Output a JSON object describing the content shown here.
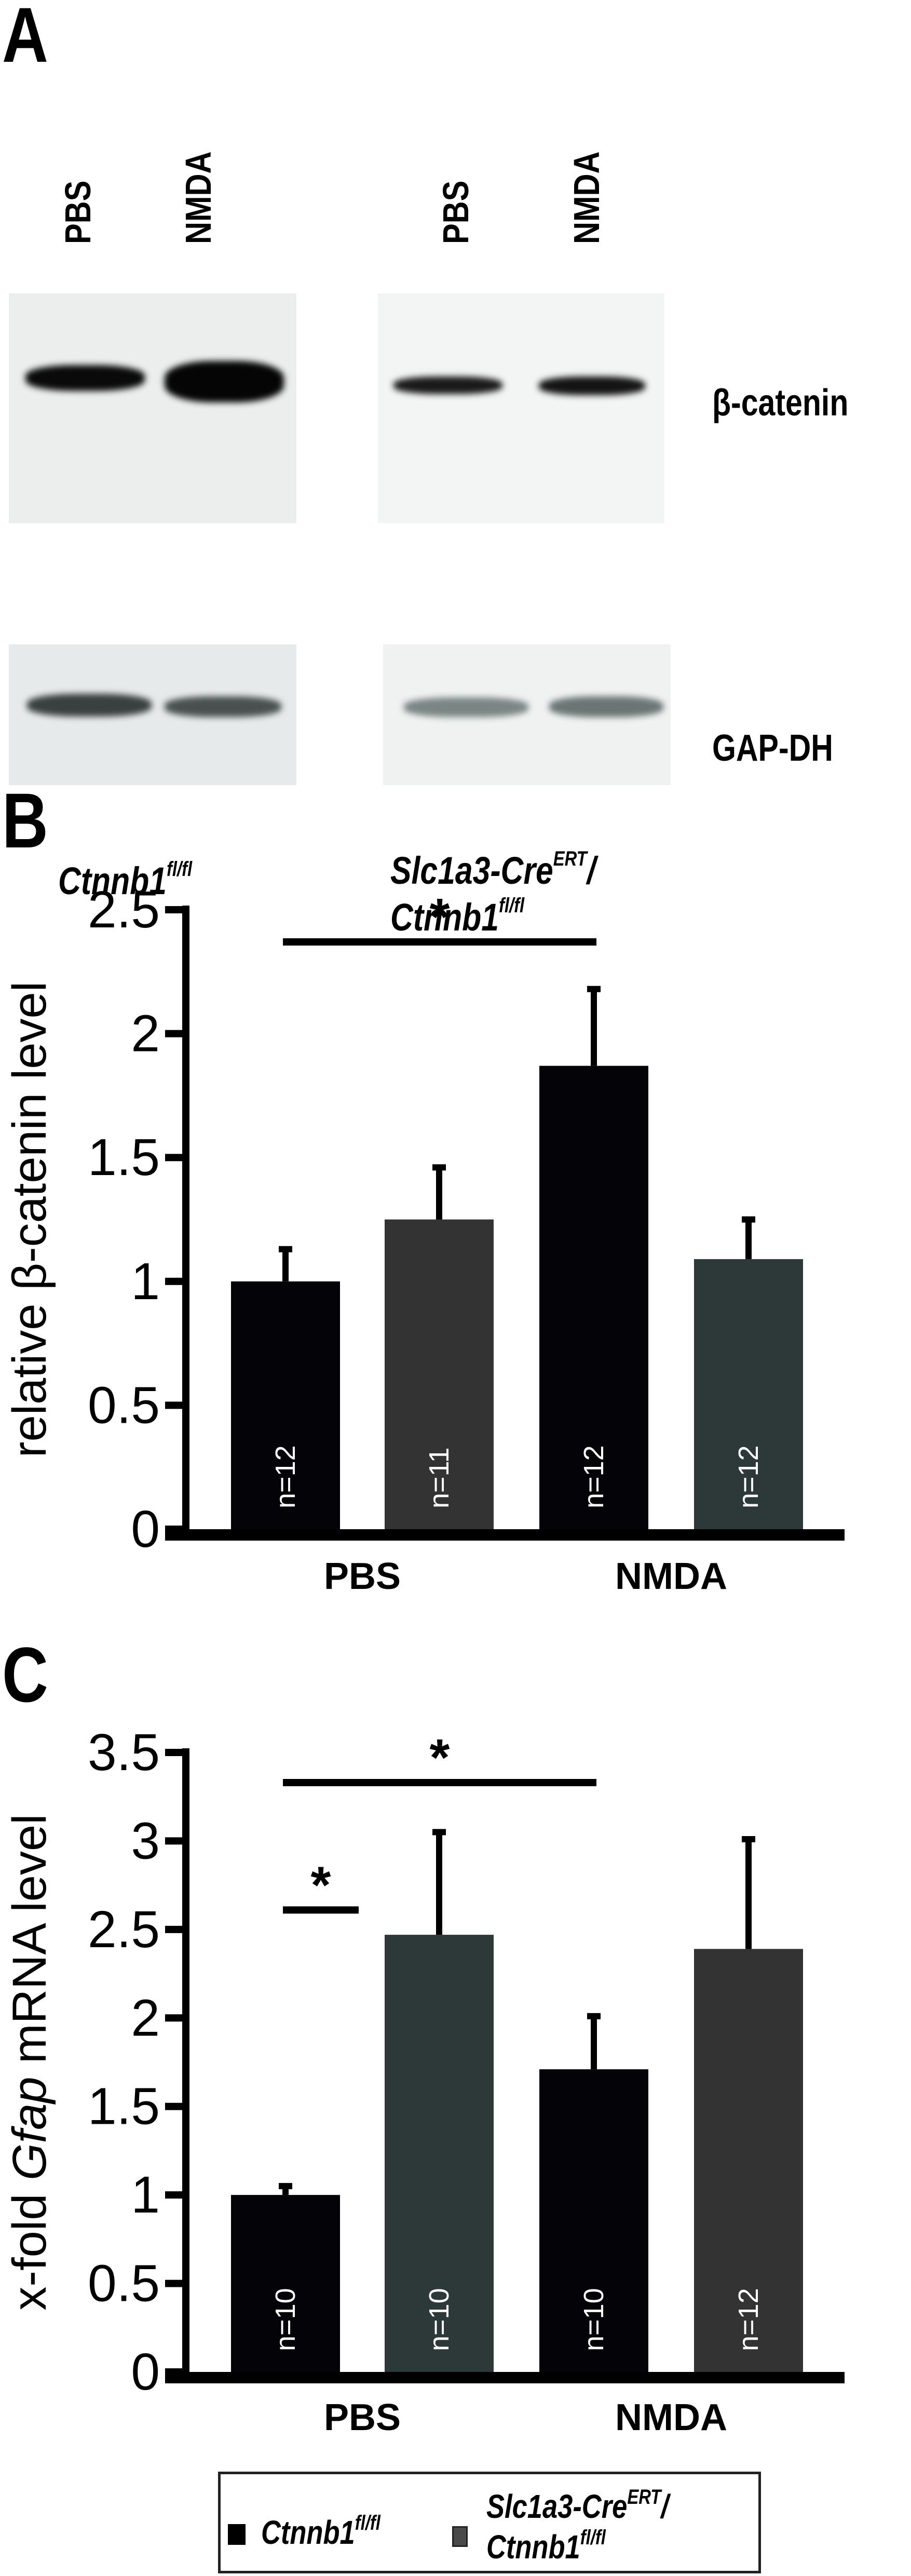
{
  "panel_a": {
    "letter": "A",
    "lane_labels": [
      "PBS",
      "NMDA",
      "PBS",
      "NMDA"
    ],
    "proteins": [
      "β-catenin",
      "GAP-DH"
    ],
    "genotype_left": {
      "main": "Ctnnb1",
      "sup": "fl/fl"
    },
    "genotype_right": {
      "line1_main": "Slc1a3-Cre",
      "line1_sup": "ERT",
      "line1_tail": "/",
      "line2_main": "Ctnnb1",
      "line2_sup": "fl/fl"
    }
  },
  "legend": {
    "items": [
      {
        "label": "Ctnnb1",
        "sup": "fl/fl",
        "color": "#000000"
      },
      {
        "label": "Slc1a3-Cre",
        "sup": "ERT",
        "tail": "/",
        "label2": "Ctnnb1",
        "sup2": "fl/fl",
        "color": "#4a4a4a"
      }
    ]
  },
  "chart_data": [
    {
      "panel": "B",
      "type": "bar",
      "title": "",
      "ylabel": "relative β-catenin level",
      "xlabel": "",
      "categories": [
        "PBS",
        "NMDA"
      ],
      "ylim": [
        0,
        2.5
      ],
      "yticks": [
        "0",
        "0.5",
        "1",
        "1.5",
        "2",
        "2.5"
      ],
      "series": [
        {
          "name": "Ctnnb1 fl/fl",
          "values": [
            1.0,
            1.87
          ],
          "errors": [
            0.13,
            0.31
          ],
          "n": [
            "n=12",
            "n=12"
          ],
          "color": "#030308"
        },
        {
          "name": "Slc1a3-CreERT/Ctnnb1 fl/fl",
          "values": [
            1.25,
            1.09
          ],
          "errors": [
            0.21,
            0.16
          ],
          "n": [
            "n=11",
            "n=12"
          ],
          "colors": [
            "#333333",
            "#2d3838"
          ]
        }
      ],
      "significance": [
        {
          "from": "PBS Ctnnb1 fl/fl",
          "to": "NMDA Ctnnb1 fl/fl",
          "y": 2.37,
          "label": "*"
        }
      ],
      "grid": false
    },
    {
      "panel": "C",
      "type": "bar",
      "title": "",
      "ylabel_parts": [
        "x-fold ",
        "Gfap",
        " mRNA level"
      ],
      "xlabel": "",
      "categories": [
        "PBS",
        "NMDA"
      ],
      "ylim": [
        0,
        3.5
      ],
      "yticks": [
        "0",
        "0.5",
        "1",
        "1.5",
        "2",
        "2.5",
        "3",
        "3.5"
      ],
      "series": [
        {
          "name": "Ctnnb1 fl/fl",
          "values": [
            1.0,
            1.71
          ],
          "errors": [
            0.05,
            0.3
          ],
          "n": [
            "n=10",
            "n=10"
          ],
          "color": "#030308"
        },
        {
          "name": "Slc1a3-CreERT/Ctnnb1 fl/fl",
          "values": [
            2.47,
            2.39
          ],
          "errors": [
            0.58,
            0.62
          ],
          "n": [
            "n=10",
            "n=12"
          ],
          "colors": [
            "#2d3838",
            "#333333"
          ]
        }
      ],
      "significance": [
        {
          "from": "PBS Ctnnb1 fl/fl",
          "to": "NMDA Ctnnb1 fl/fl",
          "y": 3.33,
          "label": "*"
        },
        {
          "from": "PBS Ctnnb1 fl/fl",
          "to": "PBS Slc1a3-CreERT/Ctnnb1 fl/fl",
          "y": 2.61,
          "label": "*"
        }
      ],
      "grid": false
    }
  ]
}
